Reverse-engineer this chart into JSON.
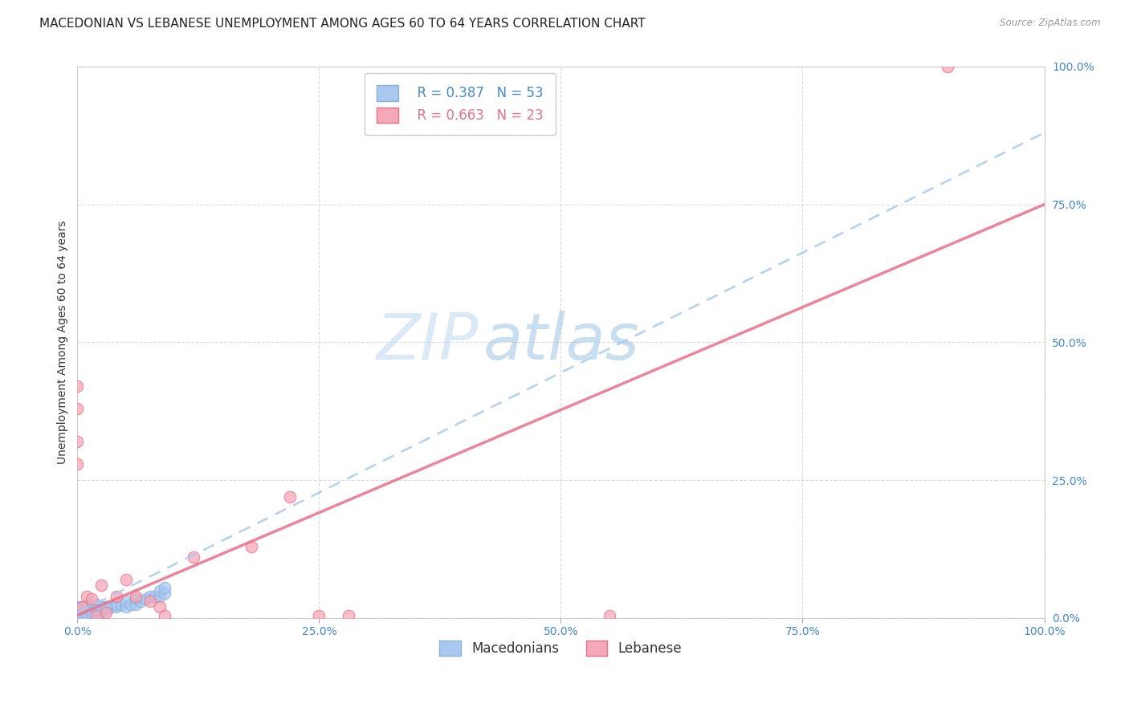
{
  "title": "MACEDONIAN VS LEBANESE UNEMPLOYMENT AMONG AGES 60 TO 64 YEARS CORRELATION CHART",
  "source": "Source: ZipAtlas.com",
  "ylabel": "Unemployment Among Ages 60 to 64 years",
  "watermark_zip": "ZIP",
  "watermark_atlas": "atlas",
  "xlim": [
    0,
    1.0
  ],
  "ylim": [
    0,
    1.0
  ],
  "xticks": [
    0.0,
    0.25,
    0.5,
    0.75,
    1.0
  ],
  "yticks": [
    0.0,
    0.25,
    0.5,
    0.75,
    1.0
  ],
  "xticklabels": [
    "0.0%",
    "25.0%",
    "50.0%",
    "75.0%",
    "100.0%"
  ],
  "yticklabels": [
    "0.0%",
    "25.0%",
    "50.0%",
    "75.0%",
    "100.0%"
  ],
  "macedonian_R": 0.387,
  "macedonian_N": 53,
  "lebanese_R": 0.663,
  "lebanese_N": 23,
  "macedonian_color": "#a8c8f0",
  "lebanese_color": "#f5a8b8",
  "macedonian_line_color": "#8ab0d8",
  "lebanese_line_color": "#e8708a",
  "mac_line_x0": 0.0,
  "mac_line_y0": 0.01,
  "mac_line_x1": 1.0,
  "mac_line_y1": 0.88,
  "leb_line_x0": 0.0,
  "leb_line_y0": 0.005,
  "leb_line_x1": 1.0,
  "leb_line_y1": 0.75,
  "macedonian_x": [
    0.0,
    0.0,
    0.0,
    0.0,
    0.0,
    0.0,
    0.0,
    0.005,
    0.005,
    0.005,
    0.005,
    0.005,
    0.01,
    0.01,
    0.01,
    0.01,
    0.01,
    0.01,
    0.015,
    0.015,
    0.015,
    0.02,
    0.02,
    0.02,
    0.025,
    0.025,
    0.025,
    0.03,
    0.03,
    0.035,
    0.04,
    0.04,
    0.045,
    0.05,
    0.05,
    0.055,
    0.06,
    0.06,
    0.065,
    0.07,
    0.075,
    0.08,
    0.085,
    0.085,
    0.09,
    0.09,
    0.0,
    0.0,
    0.005,
    0.01,
    0.015,
    0.02,
    0.03
  ],
  "macedonian_y": [
    0.0,
    0.005,
    0.005,
    0.01,
    0.01,
    0.015,
    0.02,
    0.0,
    0.005,
    0.01,
    0.015,
    0.02,
    0.0,
    0.005,
    0.01,
    0.015,
    0.02,
    0.025,
    0.005,
    0.01,
    0.02,
    0.01,
    0.015,
    0.025,
    0.01,
    0.015,
    0.02,
    0.015,
    0.02,
    0.02,
    0.02,
    0.025,
    0.025,
    0.02,
    0.03,
    0.025,
    0.025,
    0.035,
    0.03,
    0.035,
    0.04,
    0.04,
    0.04,
    0.05,
    0.045,
    0.055,
    0.0,
    0.01,
    0.0,
    0.005,
    0.01,
    0.015,
    0.02
  ],
  "lebanese_x": [
    0.0,
    0.0,
    0.0,
    0.005,
    0.01,
    0.015,
    0.02,
    0.025,
    0.04,
    0.05,
    0.06,
    0.075,
    0.085,
    0.09,
    0.12,
    0.18,
    0.22,
    0.25,
    0.28,
    0.55,
    0.9,
    0.0,
    0.03
  ],
  "lebanese_y": [
    0.38,
    0.42,
    0.32,
    0.02,
    0.04,
    0.035,
    0.005,
    0.06,
    0.04,
    0.07,
    0.04,
    0.03,
    0.02,
    0.005,
    0.11,
    0.13,
    0.22,
    0.005,
    0.005,
    0.005,
    1.0,
    0.28,
    0.01
  ],
  "background_color": "#ffffff",
  "grid_color": "#cccccc",
  "right_axis_color": "#4488cc",
  "title_fontsize": 11,
  "axis_label_fontsize": 10,
  "tick_fontsize": 10,
  "legend_fontsize": 12
}
